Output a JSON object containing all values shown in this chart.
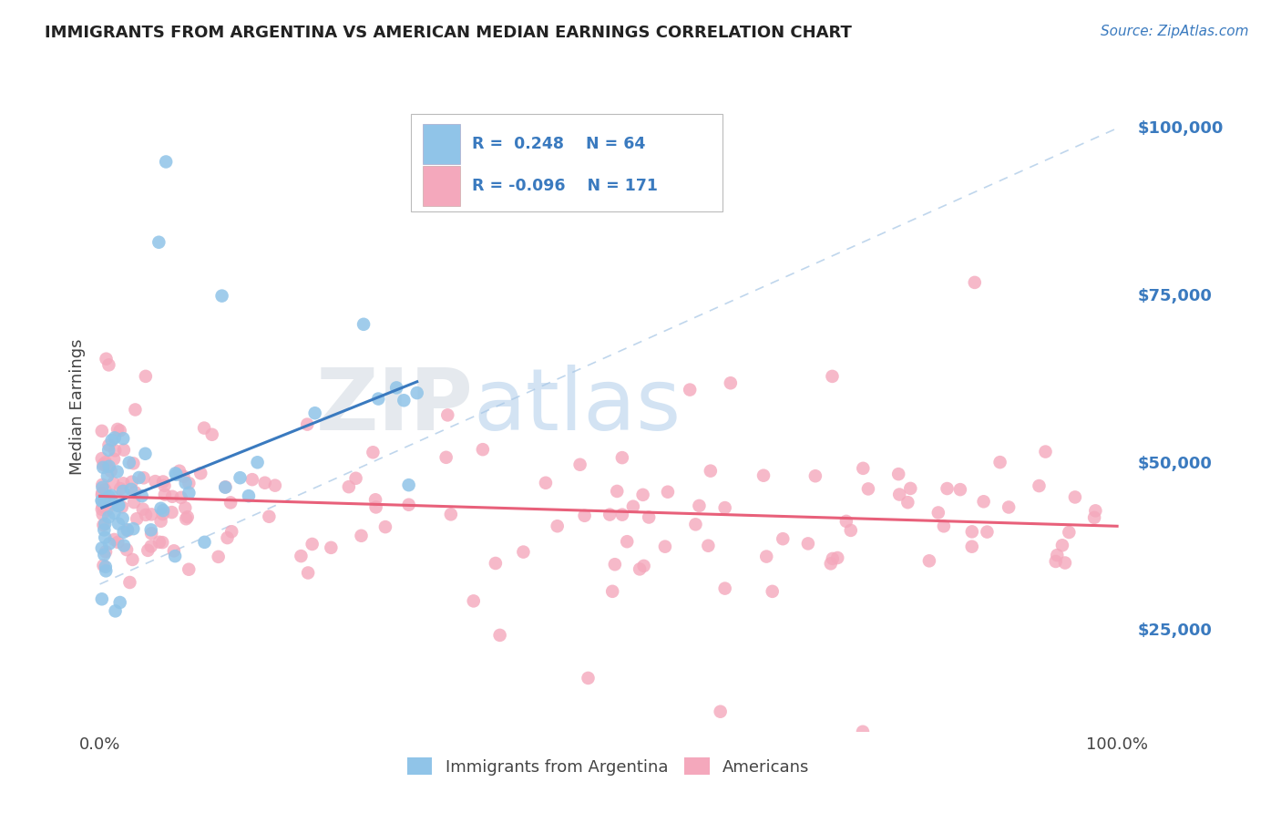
{
  "title": "IMMIGRANTS FROM ARGENTINA VS AMERICAN MEDIAN EARNINGS CORRELATION CHART",
  "source": "Source: ZipAtlas.com",
  "ylabel": "Median Earnings",
  "y_tick_labels": [
    "$25,000",
    "$50,000",
    "$75,000",
    "$100,000"
  ],
  "y_tick_values": [
    25000,
    50000,
    75000,
    100000
  ],
  "ylim": [
    10000,
    107000
  ],
  "xlim": [
    -0.01,
    1.01
  ],
  "legend_r1": "R =  0.248",
  "legend_n1": "N = 64",
  "legend_r2": "R = -0.096",
  "legend_n2": "N = 171",
  "legend_label1": "Immigrants from Argentina",
  "legend_label2": "Americans",
  "blue_color": "#90c4e8",
  "pink_color": "#f4a8bc",
  "trend_blue": "#3a7abf",
  "trend_pink": "#e8607a",
  "ref_line_color": "#b0cce8",
  "watermark_zip": "ZIP",
  "watermark_atlas": "atlas",
  "title_color": "#222222",
  "axis_label_color": "#3a7abf",
  "legend_text_color": "#222222",
  "bg_color": "#ffffff",
  "grid_color": "#cccccc",
  "blue_seed": 42,
  "pink_seed": 17
}
